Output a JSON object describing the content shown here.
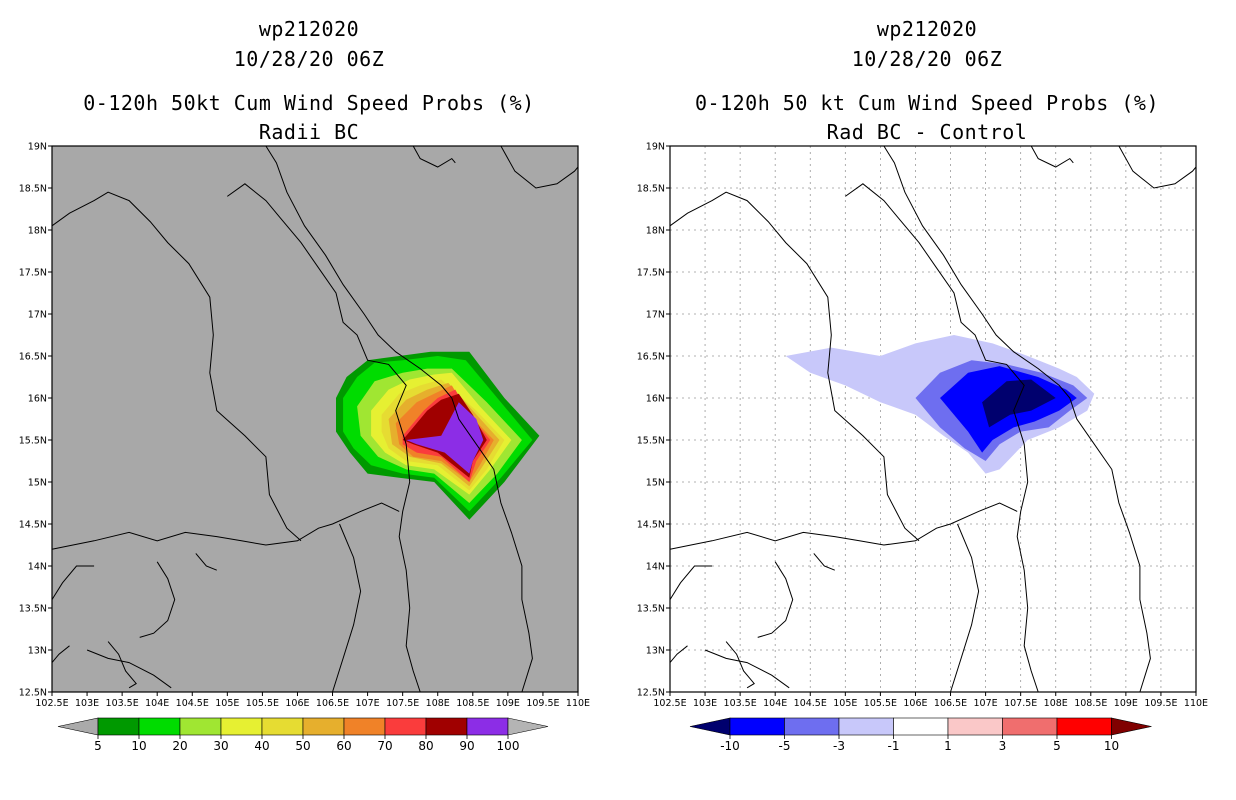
{
  "maps": [
    {
      "id": "left",
      "title_line1": "wp212020",
      "title_line2": "10/28/20 06Z",
      "title_line3": "0-120h 50kt Cum Wind Speed Probs (%)",
      "title_line4": "Radii BC",
      "background_color": "#a8a8a8",
      "grid": false,
      "extent": {
        "lon": [
          102.5,
          110
        ],
        "lat": [
          12.5,
          19
        ]
      },
      "x_tick_labels": [
        "102.5E",
        "103E",
        "103.5E",
        "104E",
        "104.5E",
        "105E",
        "105.5E",
        "106E",
        "106.5E",
        "107E",
        "107.5E",
        "108E",
        "108.5E",
        "109E",
        "109.5E",
        "110E"
      ],
      "y_tick_labels": [
        "12.5N",
        "13N",
        "13.5N",
        "14N",
        "14.5N",
        "15N",
        "15.5N",
        "16N",
        "16.5N",
        "17N",
        "17.5N",
        "18N",
        "18.5N",
        "19N"
      ],
      "colorbar": {
        "labels": [
          "5",
          "10",
          "20",
          "30",
          "40",
          "50",
          "60",
          "70",
          "80",
          "90",
          "100"
        ],
        "colors": [
          "#aaaaaa",
          "#009900",
          "#00dc00",
          "#a0e632",
          "#e6f032",
          "#e6dc32",
          "#e6af2d",
          "#f08228",
          "#fa3c3c",
          "#a00000",
          "#8c2de6",
          "#b4b4b4"
        ]
      }
    },
    {
      "id": "right",
      "title_line1": "wp212020",
      "title_line2": "10/28/20 06Z",
      "title_line3": "0-120h 50 kt Cum Wind Speed Probs (%)",
      "title_line4": "Rad BC - Control",
      "background_color": "#ffffff",
      "grid": true,
      "extent": {
        "lon": [
          102.5,
          110
        ],
        "lat": [
          12.5,
          19
        ]
      },
      "x_tick_labels": [
        "102.5E",
        "103E",
        "103.5E",
        "104E",
        "104.5E",
        "105E",
        "105.5E",
        "106E",
        "106.5E",
        "107E",
        "107.5E",
        "108E",
        "108.5E",
        "109E",
        "109.5E",
        "110E"
      ],
      "y_tick_labels": [
        "12.5N",
        "13N",
        "13.5N",
        "14N",
        "14.5N",
        "15N",
        "15.5N",
        "16N",
        "16.5N",
        "17N",
        "17.5N",
        "18N",
        "18.5N",
        "19N"
      ],
      "colorbar": {
        "labels": [
          "-10",
          "-5",
          "-3",
          "-1",
          "1",
          "3",
          "5",
          "10"
        ],
        "colors": [
          "#00006e",
          "#0000ff",
          "#6e6ef0",
          "#c8c8fa",
          "#ffffff",
          "#fac8c8",
          "#f06e6e",
          "#ff0000",
          "#800000"
        ]
      }
    }
  ],
  "colors": {
    "lp_green_dark": "#009900",
    "lp_green": "#00dc00",
    "lp_yellow_green": "#a0e632",
    "lp_yellow": "#e6f032",
    "lp_gold": "#e6dc32",
    "lp_orange1": "#e6af2d",
    "lp_orange2": "#f08228",
    "lp_red": "#fa3c3c",
    "lp_darkred": "#a00000",
    "lp_purple": "#8c2de6",
    "rp_light": "#c8c8fa",
    "rp_mid": "#6e6ef0",
    "rp_blue": "#0000ff",
    "rp_navy": "#00006e"
  }
}
